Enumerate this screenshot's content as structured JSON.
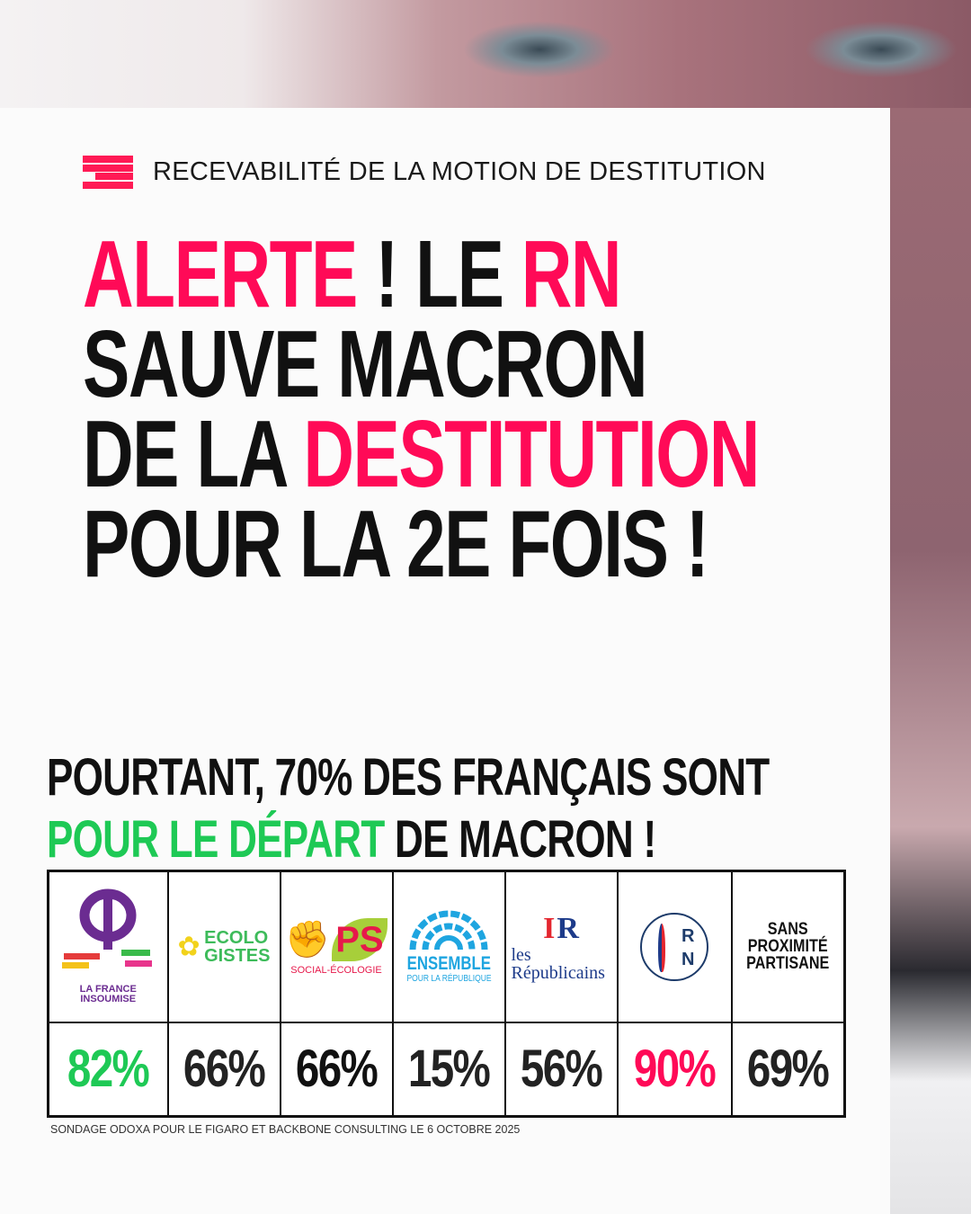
{
  "kicker": {
    "icon": "lfi-stripes-logo",
    "text": "RECEVABILITÉ DE LA MOTION DE DESTITUTION"
  },
  "headline": {
    "line1": {
      "a": "ALERTE",
      "b": " ! LE ",
      "c": "RN"
    },
    "line2": "SAUVE MACRON",
    "line3": {
      "a": "DE LA ",
      "b": "DESTITUTION"
    },
    "line4": "POUR LA 2E FOIS !"
  },
  "subheadline": {
    "line1": "POURTANT, 70% DES FRANÇAIS SONT",
    "line2_highlight": "POUR LE DÉPART",
    "line2_rest": " DE MACRON !"
  },
  "table": {
    "columns": [
      {
        "party": "LA FRANCE INSOUMISE",
        "logo_text": "FRANCE INSOUMISE",
        "value": "82%",
        "color": "#1ec955"
      },
      {
        "party": "ECOLOGISTES",
        "logo_text": [
          "ECOLO",
          "GISTES"
        ],
        "value": "66%",
        "color": "#222222"
      },
      {
        "party": "PS",
        "logo_text": [
          "PS",
          "SOCIAL-ÉCOLOGIE"
        ],
        "value": "66%",
        "color": "#111111"
      },
      {
        "party": "ENSEMBLE",
        "logo_text": [
          "ENSEMBLE",
          "POUR LA RÉPUBLIQUE"
        ],
        "value": "15%",
        "color": "#222222"
      },
      {
        "party": "LES RÉPUBLICAINS",
        "logo_text": [
          "les",
          "Républicains",
          "LR"
        ],
        "value": "56%",
        "color": "#222222"
      },
      {
        "party": "RN",
        "logo_text": [
          "R",
          "N"
        ],
        "value": "90%",
        "color": "#ff0a57"
      },
      {
        "party": "SANS PROXIMITÉ PARTISANE",
        "logo_text": [
          "SANS",
          "PROXIMITÉ",
          "PARTISANE"
        ],
        "value": "69%",
        "color": "#222222"
      }
    ]
  },
  "source": "SONDAGE ODOXA POUR LE FIGARO ET BACKBONE CONSULTING LE 6 OCTOBRE 2025",
  "colors": {
    "accent_pink": "#ff0a57",
    "accent_green": "#1ec955"
  }
}
